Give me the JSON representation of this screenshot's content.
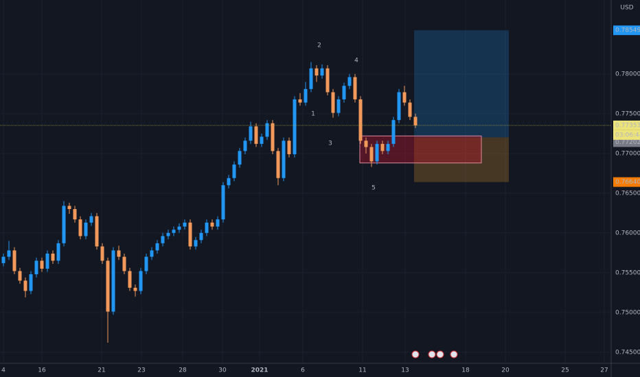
{
  "chart_data": {
    "type": "candlestick",
    "currency": "USD",
    "open": [
      0.7562,
      0.757,
      0.7578,
      0.7552,
      0.754,
      0.7527,
      0.7548,
      0.7565,
      0.7555,
      0.7574,
      0.7565,
      0.7587,
      0.7634,
      0.763,
      0.7617,
      0.7596,
      0.7613,
      0.7621,
      0.7583,
      0.7565,
      0.7501,
      0.7578,
      0.757,
      0.7552,
      0.7531,
      0.7527,
      0.7552,
      0.757,
      0.7578,
      0.7587,
      0.7596,
      0.76,
      0.7604,
      0.7608,
      0.7613,
      0.7583,
      0.7591,
      0.76,
      0.7613,
      0.7608,
      0.7617,
      0.766,
      0.7669,
      0.7686,
      0.7703,
      0.7716,
      0.7734,
      0.7712,
      0.7721,
      0.7738,
      0.7703,
      0.7669,
      0.7716,
      0.7699,
      0.7768,
      0.7764,
      0.7781,
      0.7807,
      0.7798,
      0.7807,
      0.7777,
      0.7751,
      0.7768,
      0.7785,
      0.7796,
      0.7768,
      0.7716,
      0.7708,
      0.769,
      0.7712,
      0.7703,
      0.7712,
      0.7742,
      0.7777,
      0.7764,
      0.7746
    ],
    "high": [
      0.7574,
      0.759,
      0.7582,
      0.7556,
      0.7544,
      0.7552,
      0.7569,
      0.7569,
      0.7578,
      0.7578,
      0.7591,
      0.764,
      0.7638,
      0.7634,
      0.7621,
      0.7617,
      0.7625,
      0.7625,
      0.7587,
      0.7569,
      0.7582,
      0.7584,
      0.7574,
      0.7556,
      0.7535,
      0.7556,
      0.7574,
      0.7582,
      0.7591,
      0.76,
      0.7604,
      0.7608,
      0.7612,
      0.7617,
      0.7617,
      0.7595,
      0.7604,
      0.7617,
      0.7617,
      0.7621,
      0.7664,
      0.7673,
      0.769,
      0.7707,
      0.772,
      0.774,
      0.7738,
      0.7725,
      0.7742,
      0.7742,
      0.7707,
      0.772,
      0.772,
      0.7772,
      0.7776,
      0.779,
      0.7815,
      0.7811,
      0.7812,
      0.7811,
      0.7781,
      0.7772,
      0.7789,
      0.78,
      0.78,
      0.7772,
      0.772,
      0.7712,
      0.7716,
      0.7716,
      0.7716,
      0.7746,
      0.7781,
      0.7785,
      0.7768,
      0.775
    ],
    "low": [
      0.7558,
      0.7566,
      0.7548,
      0.7536,
      0.7519,
      0.7523,
      0.7544,
      0.7551,
      0.7551,
      0.7561,
      0.7561,
      0.7583,
      0.7624,
      0.7613,
      0.7592,
      0.7592,
      0.7609,
      0.7579,
      0.7561,
      0.7462,
      0.7497,
      0.7566,
      0.7548,
      0.7527,
      0.752,
      0.7523,
      0.7548,
      0.7566,
      0.7574,
      0.7583,
      0.7592,
      0.7596,
      0.76,
      0.7604,
      0.7579,
      0.7579,
      0.7587,
      0.7596,
      0.7604,
      0.7604,
      0.7613,
      0.7656,
      0.7665,
      0.7682,
      0.7699,
      0.7712,
      0.7708,
      0.7708,
      0.7717,
      0.7699,
      0.766,
      0.7665,
      0.7695,
      0.7695,
      0.776,
      0.776,
      0.7777,
      0.779,
      0.7794,
      0.7773,
      0.7745,
      0.7747,
      0.7764,
      0.7781,
      0.7764,
      0.7712,
      0.77,
      0.7683,
      0.7686,
      0.7699,
      0.7699,
      0.7708,
      0.7738,
      0.776,
      0.7742,
      0.7732
    ],
    "close": [
      0.757,
      0.7578,
      0.7552,
      0.754,
      0.7527,
      0.7548,
      0.7565,
      0.7555,
      0.7574,
      0.7565,
      0.7587,
      0.7634,
      0.763,
      0.7617,
      0.7596,
      0.7613,
      0.7621,
      0.7583,
      0.7565,
      0.7501,
      0.7578,
      0.757,
      0.7552,
      0.7531,
      0.7527,
      0.7552,
      0.757,
      0.7578,
      0.7587,
      0.7596,
      0.76,
      0.7604,
      0.7608,
      0.7613,
      0.7583,
      0.7591,
      0.76,
      0.7613,
      0.7608,
      0.7617,
      0.766,
      0.7669,
      0.7686,
      0.7703,
      0.7716,
      0.7734,
      0.7712,
      0.7721,
      0.7738,
      0.7703,
      0.7669,
      0.7716,
      0.7699,
      0.7768,
      0.7764,
      0.7781,
      0.7807,
      0.7798,
      0.7807,
      0.7777,
      0.7751,
      0.7768,
      0.7785,
      0.7796,
      0.7768,
      0.7716,
      0.7708,
      0.769,
      0.7712,
      0.7703,
      0.7712,
      0.7742,
      0.7777,
      0.7764,
      0.7746,
      0.77353
    ],
    "up_color": "#2196f3",
    "down_color": "#f0995a",
    "ylim": [
      0.7436,
      0.7893
    ],
    "yticks": [
      {
        "value": 0.745,
        "label": "0.74500"
      },
      {
        "value": 0.75,
        "label": "0.75000"
      },
      {
        "value": 0.755,
        "label": "0.75500"
      },
      {
        "value": 0.76,
        "label": "0.76000"
      },
      {
        "value": 0.765,
        "label": "0.76500"
      },
      {
        "value": 0.77,
        "label": "0.77000"
      },
      {
        "value": 0.775,
        "label": "0.77500"
      },
      {
        "value": 0.78,
        "label": "0.78000"
      }
    ],
    "xtick_labels": [
      "4",
      "16",
      "21",
      "23",
      "28",
      "30",
      "2021",
      "6",
      "11",
      "13",
      "18",
      "20",
      "25",
      "27"
    ],
    "target": 0.78549,
    "last_price": 0.77353,
    "countdown": "03:06:44",
    "entry": 0.77202,
    "stop": {
      "value": 0.7664,
      "label": "0.76640"
    },
    "zone": [
      0.7722,
      0.7688
    ],
    "wave_labels": [
      "1",
      "2",
      "3",
      "4",
      "5"
    ],
    "grid": true
  }
}
